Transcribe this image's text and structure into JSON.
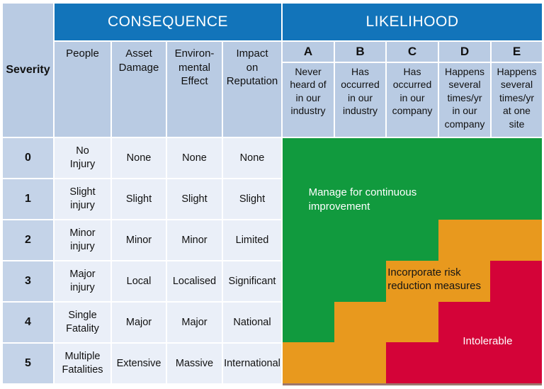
{
  "table": {
    "severity_label": "Severity",
    "consequence_label": "CONSEQUENCE",
    "likelihood_label": "LIKELIHOOD",
    "consequence_columns": [
      "People",
      "Asset\nDamage",
      "Environ-\nmental\nEffect",
      "Impact\non\nReputation"
    ],
    "likelihood_columns": [
      {
        "letter": "A",
        "description": "Never\nheard of\nin our\nindustry"
      },
      {
        "letter": "B",
        "description": "Has\noccurred\nin our\nindustry"
      },
      {
        "letter": "C",
        "description": "Has\noccurred\nin our\ncompany"
      },
      {
        "letter": "D",
        "description": "Happens\nseveral\ntimes/yr\nin our\ncompany"
      },
      {
        "letter": "E",
        "description": "Happens\nseveral\ntimes/yr\nat one\nsite"
      }
    ],
    "rows": [
      {
        "severity": "0",
        "people": "No\nInjury",
        "asset": "None",
        "environment": "None",
        "reputation": "None"
      },
      {
        "severity": "1",
        "people": "Slight\ninjury",
        "asset": "Slight",
        "environment": "Slight",
        "reputation": "Slight"
      },
      {
        "severity": "2",
        "people": "Minor\ninjury",
        "asset": "Minor",
        "environment": "Minor",
        "reputation": "Limited"
      },
      {
        "severity": "3",
        "people": "Major\ninjury",
        "asset": "Local",
        "environment": "Localised",
        "reputation": "Significant"
      },
      {
        "severity": "4",
        "people": "Single\nFatality",
        "asset": "Major",
        "environment": "Major",
        "reputation": "National"
      },
      {
        "severity": "5",
        "people": "Multiple\nFatalities",
        "asset": "Extensive",
        "environment": "Massive",
        "reputation": "International"
      }
    ]
  },
  "risk_zones": {
    "labels": {
      "green": "Manage for continuous improvement",
      "orange": "Incorporate risk reduction measures",
      "red": "Intolerable"
    },
    "colors": {
      "green": "#119A3E",
      "orange": "#E8991E",
      "red": "#D40338"
    },
    "cell_colors_by_row": [
      [
        "green",
        "green",
        "green",
        "green",
        "green"
      ],
      [
        "green",
        "green",
        "green",
        "green",
        "green"
      ],
      [
        "green",
        "green",
        "green",
        "orange",
        "orange"
      ],
      [
        "green",
        "green",
        "orange",
        "orange",
        "red"
      ],
      [
        "green",
        "orange",
        "orange",
        "red",
        "red"
      ],
      [
        "orange",
        "orange",
        "red",
        "red",
        "red"
      ]
    ]
  },
  "colors": {
    "header_blue": "#1274BA",
    "subheader_blue": "#B9CBE3",
    "severity_cell_blue": "#C4D3E8",
    "data_cell_blue": "#EAEFF8"
  }
}
